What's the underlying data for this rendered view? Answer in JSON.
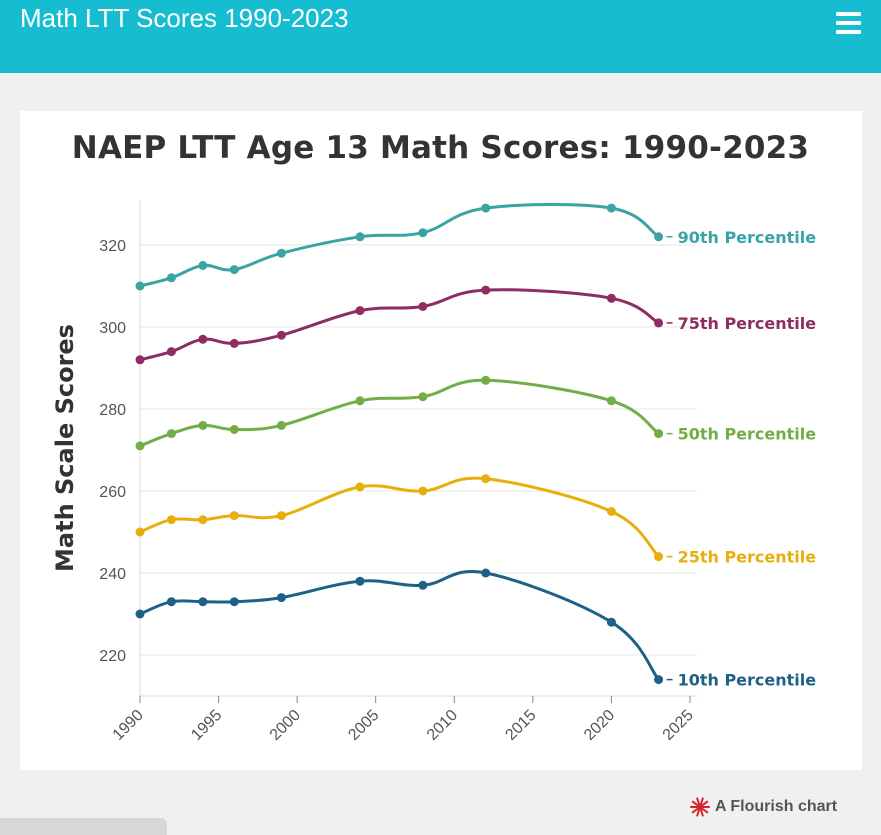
{
  "header": {
    "title": "Math LTT Scores 1990-2023",
    "menu_icon": "hamburger-menu-icon",
    "background": "#16bdd1"
  },
  "credit": {
    "label": "A Flourish chart",
    "icon": "flourish-logo-icon",
    "icon_color": "#d3262c"
  },
  "chart_data": {
    "type": "line",
    "title": "NAEP LTT Age 13 Math Scores: 1990-2023",
    "xlabel": "",
    "ylabel": "Math Scale Scores",
    "xlim": [
      1990,
      2025
    ],
    "ylim": [
      210,
      330
    ],
    "x_ticks": [
      "1990",
      "1995",
      "2000",
      "2005",
      "2010",
      "2015",
      "2020",
      "2025"
    ],
    "y_ticks": [
      "220",
      "240",
      "260",
      "280",
      "300",
      "320"
    ],
    "grid": true,
    "legend": "labels at line ends (right)",
    "x": [
      1990,
      1992,
      1994,
      1996,
      1999,
      2004,
      2008,
      2012,
      2020,
      2023
    ],
    "series": [
      {
        "name": "90th Percentile",
        "color": "#3aa3a3",
        "values": [
          310,
          312,
          315,
          314,
          318,
          322,
          323,
          329,
          329,
          322
        ]
      },
      {
        "name": "75th Percentile",
        "color": "#8e2c63",
        "values": [
          292,
          294,
          297,
          296,
          298,
          304,
          305,
          309,
          307,
          301
        ]
      },
      {
        "name": "50th Percentile",
        "color": "#72ad45",
        "values": [
          271,
          274,
          276,
          275,
          276,
          282,
          283,
          287,
          282,
          274
        ]
      },
      {
        "name": "25th Percentile",
        "color": "#e8ae0c",
        "values": [
          250,
          253,
          253,
          254,
          254,
          261,
          260,
          263,
          255,
          244
        ]
      },
      {
        "name": "10th Percentile",
        "color": "#1e6086",
        "values": [
          230,
          233,
          233,
          233,
          234,
          238,
          237,
          240,
          228,
          214
        ]
      }
    ]
  }
}
